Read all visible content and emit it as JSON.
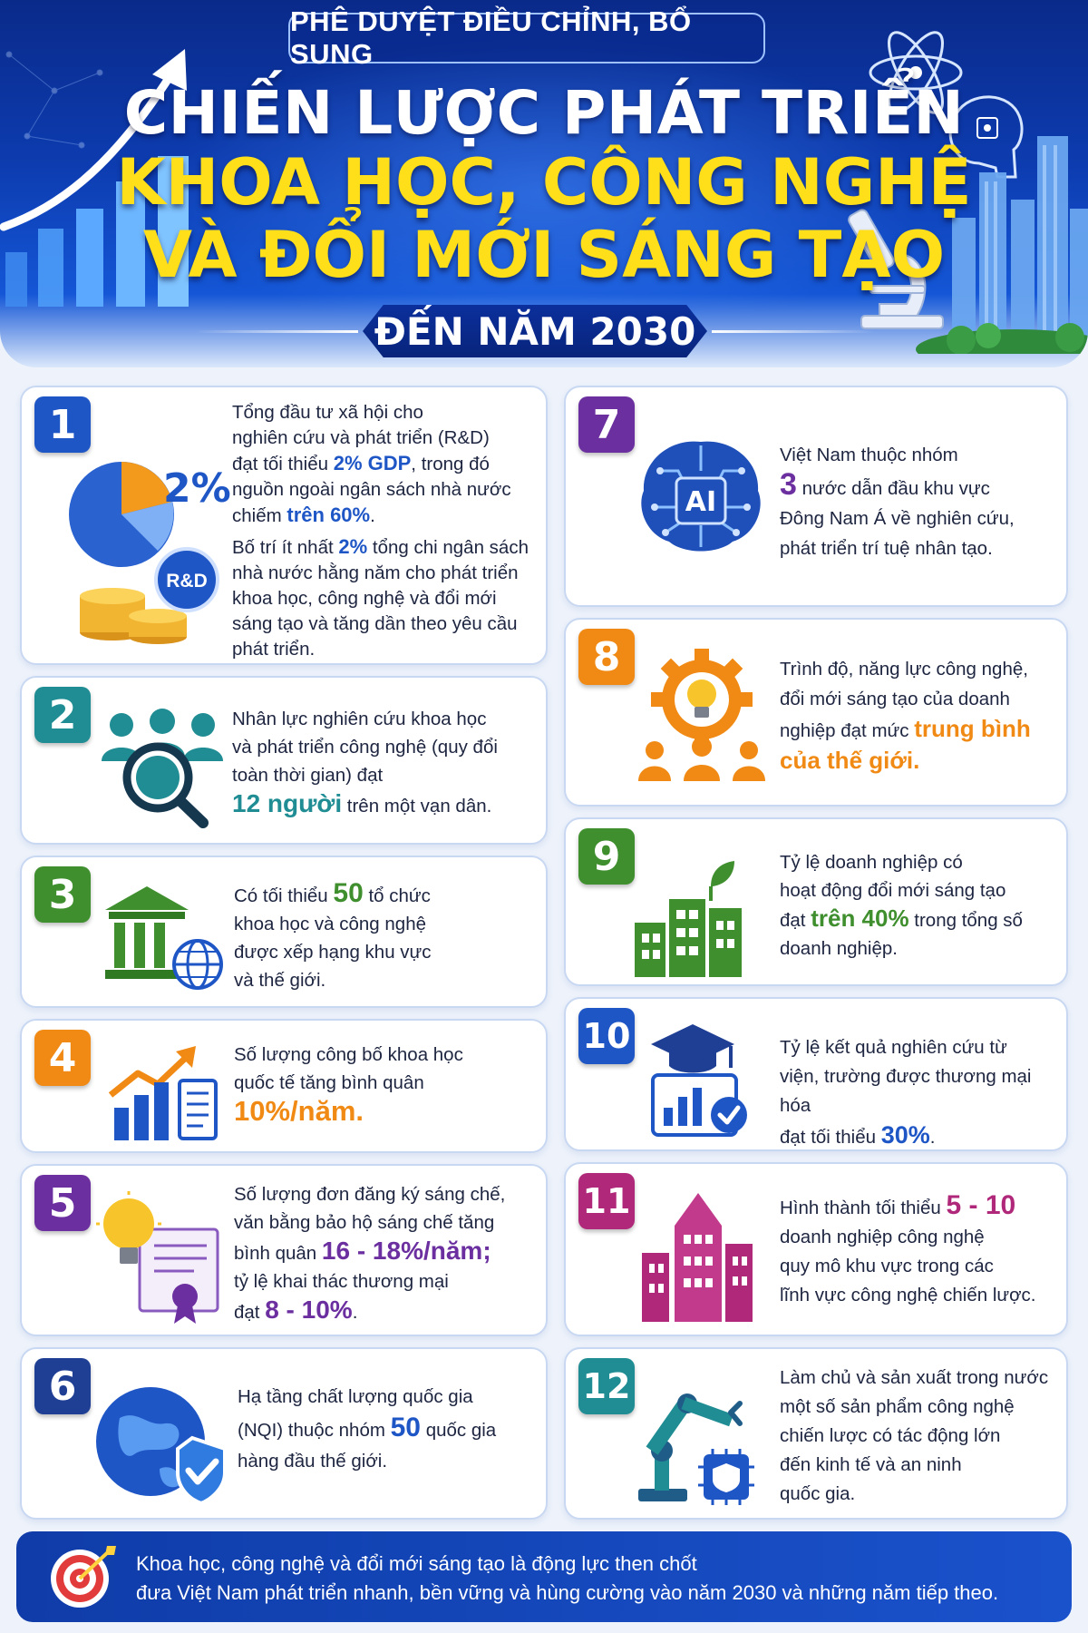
{
  "header": {
    "tag": "PHÊ DUYỆT ĐIỀU CHỈNH, BỔ SUNG",
    "title_line1": "CHIẾN LƯỢC PHÁT TRIỂN",
    "title_line2": "KHOA HỌC, CÔNG NGHỆ",
    "title_line3": "VÀ ĐỔI MỚI SÁNG TẠO",
    "year": "ĐẾN NĂM 2030"
  },
  "colors": {
    "blue": "#1f56c6",
    "teal": "#1f8d93",
    "green": "#3f8f2e",
    "orange": "#f08a14",
    "purple": "#6b2f9f",
    "magenta": "#b0287a",
    "dark_blue": "#1f3f95"
  },
  "items": {
    "i1": {
      "num": "1",
      "icon_text": "2%",
      "badge": "R&D",
      "p1a": "Tổng đầu tư xã hội cho",
      "p1b": "nghiên cứu và phát triển (R&D)",
      "p1c_pre": "đạt tối thiểu ",
      "p1c_hl": "2% GDP",
      "p1c_post": ", trong đó",
      "p1d": "nguồn ngoài ngân sách nhà nước",
      "p1e_pre": "chiếm ",
      "p1e_hl": "trên 60%",
      "p1e_post": ".",
      "p2a_pre": "Bố trí ít nhất ",
      "p2a_hl": "2%",
      "p2a_post": " tổng chi ngân sách",
      "p2b": "nhà nước hằng năm cho phát triển",
      "p2c": "khoa học, công nghệ và đổi mới",
      "p2d": "sáng tạo và tăng dần theo yêu cầu",
      "p2e": "phát triển."
    },
    "i2": {
      "num": "2",
      "l1": "Nhân lực nghiên cứu khoa học",
      "l2": "và phát triển công nghệ (quy đổi",
      "l3": "toàn thời gian) đạt",
      "l4_hl": "12 người",
      "l4_post": " trên một vạn dân."
    },
    "i3": {
      "num": "3",
      "l1_pre": "Có tối thiểu ",
      "l1_hl": "50",
      "l1_post": " tổ chức",
      "l2": "khoa học và công nghệ",
      "l3": "được xếp hạng khu vực",
      "l4": "và thế giới."
    },
    "i4": {
      "num": "4",
      "l1": "Số lượng công bố khoa học",
      "l2": "quốc tế tăng bình quân",
      "l3_hl": "10%/năm."
    },
    "i5": {
      "num": "5",
      "l1": "Số lượng đơn đăng ký sáng chế,",
      "l2": "văn bằng bảo hộ sáng chế tăng",
      "l3_pre": "bình quân ",
      "l3_hl": "16 - 18%/năm;",
      "l4": "tỷ lệ khai thác thương mại",
      "l5_pre": "đạt ",
      "l5_hl": "8 - 10%",
      "l5_post": "."
    },
    "i6": {
      "num": "6",
      "l1": "Hạ tầng chất lượng quốc gia",
      "l2_pre": "(NQI) thuộc nhóm ",
      "l2_hl": "50",
      "l2_post": " quốc gia",
      "l3": "hàng đầu thế giới."
    },
    "i7": {
      "num": "7",
      "icon_text": "AI",
      "l1": "Việt Nam thuộc nhóm",
      "l2_hl": "3",
      "l2_post": " nước dẫn đầu khu vực",
      "l3": "Đông Nam Á về nghiên cứu,",
      "l4": "phát triển trí tuệ nhân tạo."
    },
    "i8": {
      "num": "8",
      "l1": "Trình độ, năng lực công nghệ,",
      "l2": "đổi mới sáng tạo của doanh",
      "l3_pre": "nghiệp đạt mức ",
      "l3_hl": "trung bình",
      "l4_hl": "của thế giới."
    },
    "i9": {
      "num": "9",
      "l1": "Tỷ lệ doanh nghiệp có",
      "l2": "hoạt động đổi mới sáng tạo",
      "l3_pre": "đạt ",
      "l3_hl": "trên 40%",
      "l3_post": " trong tổng số",
      "l4": "doanh nghiệp."
    },
    "i10": {
      "num": "10",
      "l1": "Tỷ lệ kết quả nghiên cứu từ",
      "l2": "viện, trường được thương mại hóa",
      "l3_pre": "đạt tối thiểu ",
      "l3_hl": "30%",
      "l3_post": "."
    },
    "i11": {
      "num": "11",
      "l1_pre": "Hình thành tối thiểu ",
      "l1_hl": "5 - 10",
      "l2": "doanh nghiệp công nghệ",
      "l3": "quy mô khu vực trong các",
      "l4": "lĩnh vực công nghệ chiến lược."
    },
    "i12": {
      "num": "12",
      "l1": "Làm chủ và sản xuất trong nước",
      "l2": "một số sản phẩm công nghệ",
      "l3": "chiến lược có tác động lớn",
      "l4": "đến kinh tế và an ninh",
      "l5": "quốc gia."
    }
  },
  "footer": {
    "line1": "Khoa học, công nghệ và đổi mới sáng tạo là động lực then chốt",
    "line2": "đưa Việt Nam phát triển nhanh, bền vững và hùng cường vào năm 2030 và những năm tiếp theo."
  }
}
